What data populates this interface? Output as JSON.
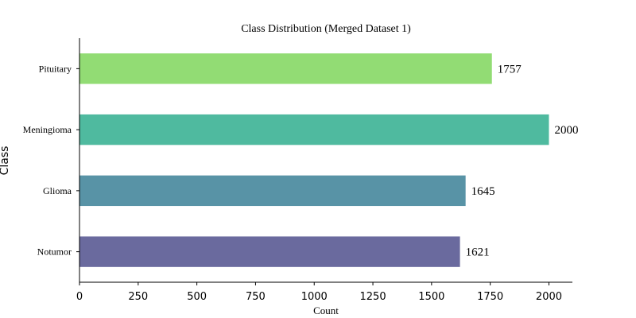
{
  "chart_data": {
    "type": "bar",
    "orientation": "horizontal",
    "title": "Class Distribution (Merged Dataset 1)",
    "xlabel": "Count",
    "ylabel": "Class",
    "categories": [
      "Notumor",
      "Glioma",
      "Meningioma",
      "Pituitary"
    ],
    "values": [
      1621,
      1645,
      2000,
      1757
    ],
    "colors": [
      "#6a6a9e",
      "#5893a6",
      "#4fba9f",
      "#92dc74"
    ],
    "xlim": [
      0,
      2100
    ],
    "xticks": [
      0,
      250,
      500,
      750,
      1000,
      1250,
      1500,
      1750,
      2000
    ],
    "grid": false,
    "legend": "none",
    "data_labels": true
  }
}
